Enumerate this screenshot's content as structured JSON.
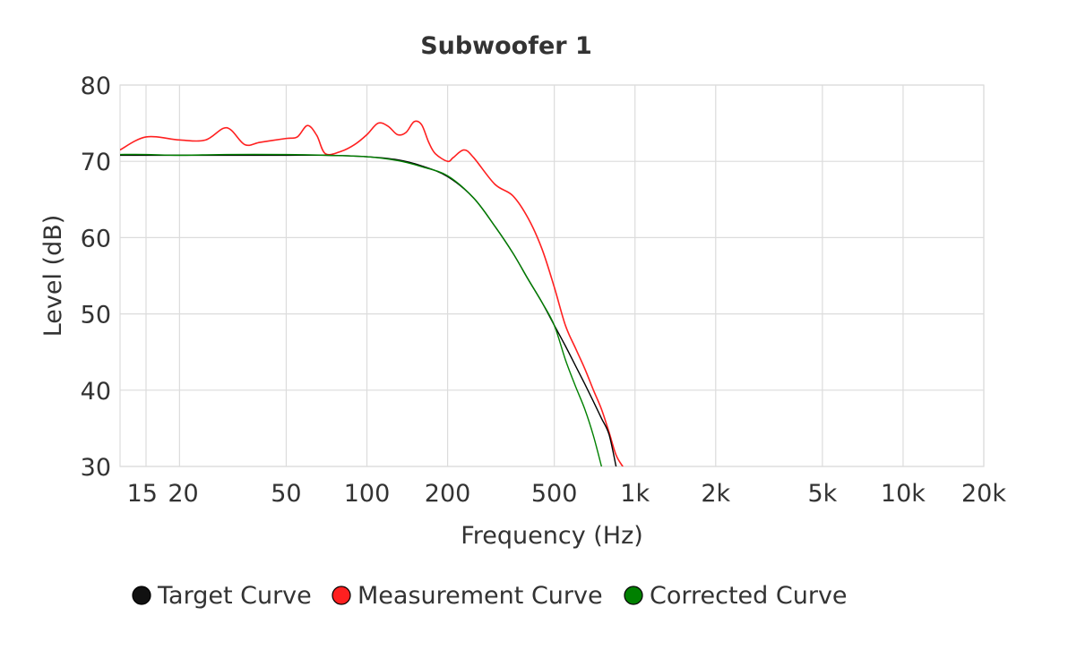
{
  "chart_data": {
    "type": "line",
    "title": "Subwoofer 1",
    "xlabel": "Frequency (Hz)",
    "ylabel": "Level (dB)",
    "xscale": "log",
    "xlim": [
      12,
      20000
    ],
    "ylim": [
      30,
      80
    ],
    "x_ticks": [
      {
        "value": 15,
        "label": "15"
      },
      {
        "value": 20,
        "label": "20"
      },
      {
        "value": 50,
        "label": "50"
      },
      {
        "value": 100,
        "label": "100"
      },
      {
        "value": 200,
        "label": "200"
      },
      {
        "value": 500,
        "label": "500"
      },
      {
        "value": 1000,
        "label": "1k"
      },
      {
        "value": 2000,
        "label": "2k"
      },
      {
        "value": 5000,
        "label": "5k"
      },
      {
        "value": 10000,
        "label": "10k"
      },
      {
        "value": 20000,
        "label": "20k"
      }
    ],
    "y_ticks": [
      {
        "value": 30,
        "label": "30"
      },
      {
        "value": 40,
        "label": "40"
      },
      {
        "value": 50,
        "label": "50"
      },
      {
        "value": 60,
        "label": "60"
      },
      {
        "value": 70,
        "label": "70"
      },
      {
        "value": 80,
        "label": "80"
      }
    ],
    "grid": true,
    "legend_position": "bottom",
    "series": [
      {
        "name": "Target Curve",
        "color": "#000000",
        "x": [
          12,
          15,
          20,
          30,
          50,
          70,
          100,
          130,
          160,
          200,
          250,
          300,
          350,
          400,
          450,
          500,
          550,
          600,
          650,
          700,
          750,
          800,
          850
        ],
        "y": [
          70.8,
          70.8,
          70.8,
          70.8,
          70.8,
          70.8,
          70.6,
          70.2,
          69.4,
          68.0,
          65.2,
          61.5,
          58.0,
          54.5,
          51.5,
          48.5,
          45.8,
          43.2,
          40.8,
          38.5,
          36.3,
          34.2,
          30.0
        ]
      },
      {
        "name": "Measurement Curve",
        "color": "#ff2020",
        "x": [
          12,
          15,
          20,
          25,
          30,
          35,
          40,
          50,
          55,
          60,
          65,
          70,
          80,
          90,
          100,
          110,
          120,
          130,
          140,
          150,
          160,
          170,
          180,
          200,
          210,
          230,
          250,
          300,
          350,
          400,
          450,
          500,
          550,
          600,
          650,
          700,
          750,
          800,
          850,
          900
        ],
        "y": [
          71.5,
          73.2,
          72.8,
          72.8,
          74.4,
          72.2,
          72.5,
          73.0,
          73.2,
          74.7,
          73.4,
          71.0,
          71.3,
          72.2,
          73.5,
          75.0,
          74.6,
          73.5,
          73.8,
          75.2,
          74.8,
          72.5,
          71.0,
          70.0,
          70.5,
          71.5,
          70.5,
          67.0,
          65.5,
          62.5,
          58.5,
          53.5,
          48.5,
          45.5,
          42.8,
          40.0,
          37.5,
          34.5,
          31.5,
          30.0
        ]
      },
      {
        "name": "Corrected Curve",
        "color": "#008000",
        "x": [
          12,
          15,
          20,
          30,
          50,
          70,
          100,
          130,
          160,
          200,
          250,
          300,
          350,
          400,
          450,
          500,
          550,
          600,
          650,
          700,
          750
        ],
        "y": [
          70.9,
          70.9,
          70.8,
          70.9,
          70.9,
          70.8,
          70.6,
          70.1,
          69.3,
          68.1,
          65.2,
          61.5,
          58.0,
          54.5,
          51.5,
          48.5,
          44.0,
          40.5,
          37.5,
          34.0,
          30.0
        ]
      }
    ]
  }
}
